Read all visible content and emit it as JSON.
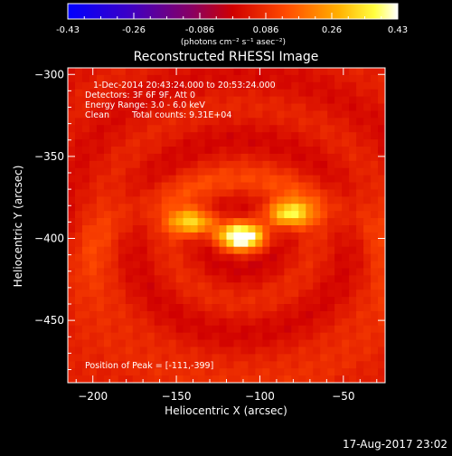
{
  "colorbar": {
    "ticks": [
      "-0.43",
      "-0.26",
      "-0.086",
      "0.086",
      "0.26",
      "0.43"
    ],
    "units_text": "(photons cm⁻² s⁻¹ asec⁻²)"
  },
  "title": "Reconstructed RHESSI Image",
  "annotations": {
    "time_range": "1-Dec-2014 20:43:24.000 to 20:53:24.000",
    "detectors": "Detectors: 3F 6F 9F, Att 0",
    "energy_range": "Energy Range: 3.0 - 6.0 keV",
    "algorithm": "Clean",
    "total_counts": "Total counts: 9.31E+04",
    "peak_position": "Position of Peak = [-111,-399]"
  },
  "footer_timestamp": "17-Aug-2017 23:02",
  "chart_data": {
    "type": "heatmap",
    "title": "Reconstructed RHESSI Image",
    "xlabel": "Heliocentric X (arcsec)",
    "ylabel": "Heliocentric Y (arcsec)",
    "xlim": [
      -215,
      -25
    ],
    "ylim": [
      -488,
      -296
    ],
    "x_ticks": [
      -200,
      -150,
      -100,
      -50
    ],
    "y_ticks": [
      -450,
      -400,
      -350,
      -300
    ],
    "x_tick_labels": [
      "−200",
      "−150",
      "−100",
      "−50"
    ],
    "y_tick_labels": [
      "−450",
      "−400",
      "−350",
      "−300"
    ],
    "colorbar_range": [
      -0.43,
      0.43
    ],
    "colormap": "red-temperature (blue-purple-red-orange-yellow-white)",
    "peak": {
      "x": -111,
      "y": -399
    },
    "sources": [
      {
        "x": -111,
        "y": -399,
        "amplitude": 0.43
      },
      {
        "x": -140,
        "y": -390,
        "amplitude": 0.3
      },
      {
        "x": -83,
        "y": -385,
        "amplitude": 0.33
      }
    ]
  }
}
